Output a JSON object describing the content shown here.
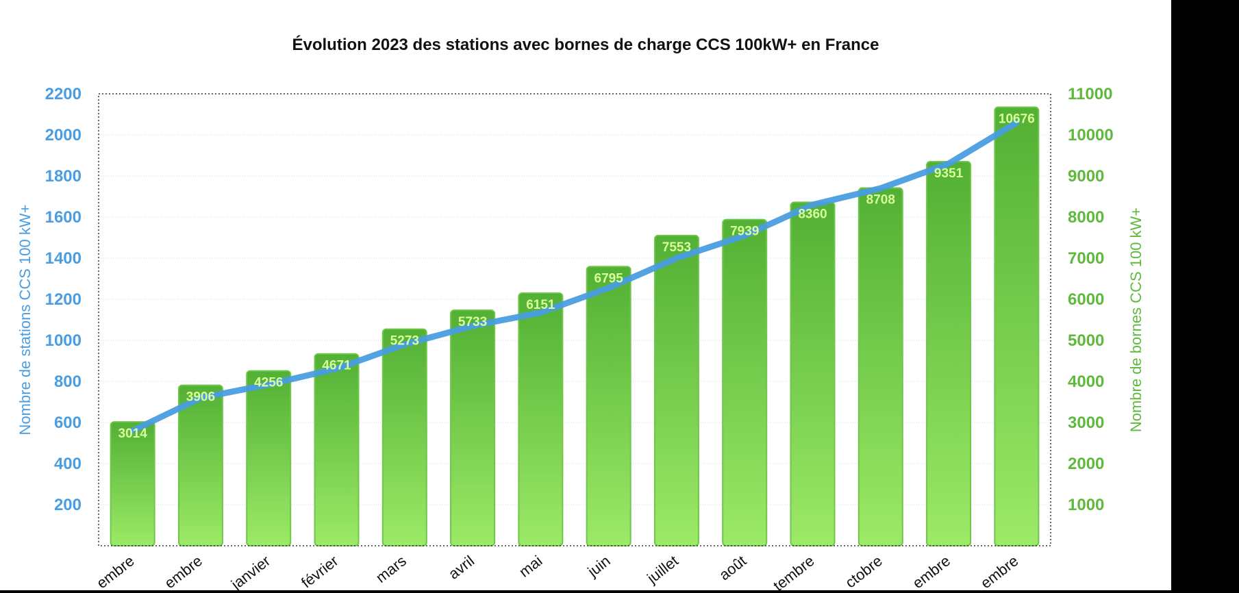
{
  "chart_data": {
    "type": "bar",
    "title": "Évolution 2023 des stations avec bornes de charge CCS 100kW+ en France",
    "categories": [
      "embre",
      "embre",
      "janvier",
      "février",
      "mars",
      "avril",
      "mai",
      "juin",
      "juillet",
      "août",
      "tembre",
      "ctobre",
      "embre",
      "embre"
    ],
    "series": [
      {
        "name": "Nombre de bornes CCS 100 kW+",
        "type": "bar",
        "axis": "right",
        "values": [
          3014,
          3906,
          4256,
          4671,
          5273,
          5733,
          6151,
          6795,
          7553,
          7939,
          8360,
          8708,
          9351,
          10676
        ],
        "labels": [
          "3014",
          "3906",
          "4256",
          "4671",
          "5273",
          "5733",
          "6151",
          "6795",
          "7553",
          "7939",
          "8360",
          "8708",
          "9351",
          "10676"
        ]
      },
      {
        "name": "Nombre de stations CCS 100 kW+",
        "type": "line",
        "axis": "left",
        "values": [
          560,
          720,
          785,
          862,
          980,
          1070,
          1135,
          1255,
          1400,
          1510,
          1660,
          1740,
          1860,
          2060
        ]
      }
    ],
    "y_left": {
      "label": "Nombre de stations CCS 100 kW+",
      "range": [
        0,
        2200
      ],
      "ticks": [
        "200",
        "400",
        "600",
        "800",
        "1000",
        "1200",
        "1400",
        "1600",
        "1800",
        "2000",
        "2200"
      ]
    },
    "y_right": {
      "label": "Nombre de bornes CCS 100 kW+",
      "range": [
        0,
        11000
      ],
      "ticks": [
        "1000",
        "2000",
        "3000",
        "4000",
        "5000",
        "6000",
        "7000",
        "8000",
        "9000",
        "10000",
        "11000"
      ]
    },
    "grid": true,
    "legend": "none",
    "colors": {
      "left_axis": "#4a9de0",
      "right_axis": "#5fb93d",
      "line": "#4a9de0",
      "bar_top": "#52b034",
      "bar_bottom": "#9cea67",
      "bar_stroke": "#6fc64a",
      "bar_label": "#d8ff9a",
      "title": "#111111"
    }
  }
}
